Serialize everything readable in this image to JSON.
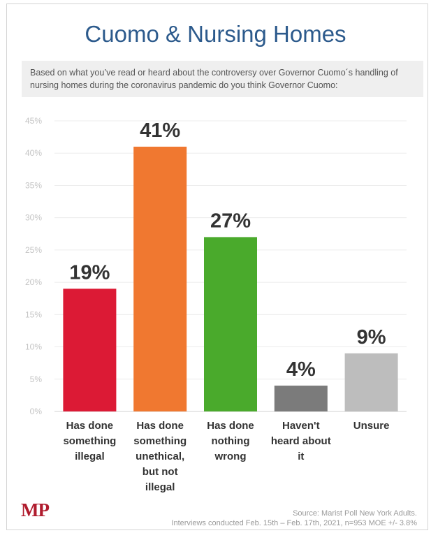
{
  "chart_data": {
    "type": "bar",
    "title": "Cuomo & Nursing Homes",
    "subtitle": "Based on what you’ve read or heard about the controversy over Governor Cuomo´s handling of nursing homes during the coronavirus pandemic do you think Governor Cuomo:",
    "categories": [
      "Has done something illegal",
      "Has done something unethical, but not illegal",
      "Has done nothing wrong",
      "Haven't heard about it",
      "Unsure"
    ],
    "category_lines": [
      [
        "Has done",
        "something",
        "illegal"
      ],
      [
        "Has done",
        "something",
        "unethical,",
        "but not",
        "illegal"
      ],
      [
        "Has done",
        "nothing",
        "wrong"
      ],
      [
        "Haven't",
        "heard about",
        "it"
      ],
      [
        "Unsure"
      ]
    ],
    "values": [
      19,
      41,
      27,
      4,
      9
    ],
    "value_labels": [
      "19%",
      "41%",
      "27%",
      "4%",
      "9%"
    ],
    "colors": [
      "#dc1a35",
      "#f07830",
      "#4aaa2c",
      "#7b7b7b",
      "#bdbdbd"
    ],
    "ylim": [
      0,
      45
    ],
    "yticks": [
      0,
      5,
      10,
      15,
      20,
      25,
      30,
      35,
      40,
      45
    ],
    "ytick_labels": [
      "0%",
      "5%",
      "10%",
      "15%",
      "20%",
      "25%",
      "30%",
      "35%",
      "40%",
      "45%"
    ],
    "grid": true,
    "legend": false
  },
  "footer": {
    "logo_text": "MP",
    "source_line1": "Source: Marist Poll New York Adults.",
    "source_line2": "Interviews conducted Feb. 15th – Feb. 17th, 2021, n=953 MOE +/- 3.8%"
  }
}
